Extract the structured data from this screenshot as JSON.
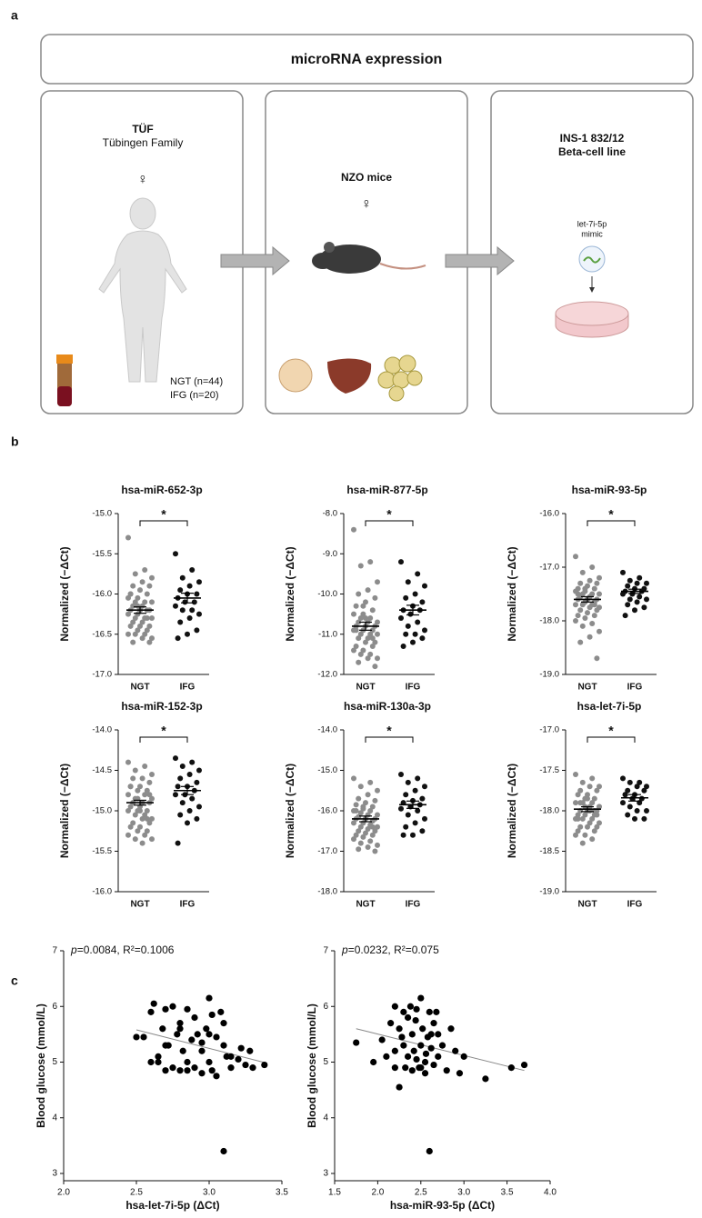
{
  "figure": {
    "panel_labels": [
      "a",
      "b",
      "c"
    ],
    "header": "microRNA expression",
    "boxes": [
      {
        "title": "TÜF",
        "subtitle": "Tübingen Family",
        "sex": "♀",
        "groups": [
          "NGT (n=44)",
          "IFG (n=20)"
        ]
      },
      {
        "title": "NZO mice",
        "sex": "♀"
      },
      {
        "title_lines": [
          "INS-1 832/12",
          "Beta-cell line"
        ],
        "label_lines": [
          "let-7i-5p",
          "mimic"
        ]
      }
    ]
  },
  "chart_data": [
    {
      "type": "strip",
      "title": "hsa-miR-652-3p",
      "ylabel": "Normalized (−ΔCt)",
      "categories": [
        "NGT",
        "IFG"
      ],
      "annotation": "*",
      "series": [
        {
          "color": "#8c8c8c",
          "mean": -16.2,
          "sem": 0.04,
          "values": [
            -15.3,
            -15.7,
            -15.75,
            -15.8,
            -15.85,
            -15.9,
            -15.9,
            -15.95,
            -16.0,
            -16.0,
            -16.05,
            -16.05,
            -16.1,
            -16.1,
            -16.1,
            -16.15,
            -16.15,
            -16.2,
            -16.2,
            -16.2,
            -16.2,
            -16.25,
            -16.25,
            -16.3,
            -16.3,
            -16.3,
            -16.35,
            -16.35,
            -16.4,
            -16.4,
            -16.4,
            -16.45,
            -16.45,
            -16.5,
            -16.5,
            -16.5,
            -16.55,
            -16.55,
            -16.6,
            -16.6,
            -16.2,
            -16.0,
            -16.3,
            -16.15
          ]
        },
        {
          "color": "#111111",
          "mean": -16.05,
          "sem": 0.06,
          "values": [
            -15.5,
            -15.7,
            -15.8,
            -15.85,
            -15.9,
            -15.95,
            -16.0,
            -16.0,
            -16.05,
            -16.1,
            -16.1,
            -16.15,
            -16.2,
            -16.2,
            -16.25,
            -16.3,
            -16.35,
            -16.45,
            -16.5,
            -16.55
          ]
        }
      ],
      "ylim": [
        -17,
        -15
      ],
      "yticks": [
        {
          "value": -15,
          "label": "-15.0"
        },
        {
          "value": -15.5,
          "label": "-15.5"
        },
        {
          "value": -16,
          "label": "-16.0"
        },
        {
          "value": -16.5,
          "label": "-16.5"
        },
        {
          "value": -17,
          "label": "-17.0"
        }
      ]
    },
    {
      "type": "strip",
      "title": "hsa-miR-877-5p",
      "ylabel": "Normalized (−ΔCt)",
      "categories": [
        "NGT",
        "IFG"
      ],
      "annotation": "*",
      "series": [
        {
          "color": "#8c8c8c",
          "mean": -10.8,
          "sem": 0.1,
          "values": [
            -8.4,
            -9.2,
            -9.3,
            -9.7,
            -9.9,
            -10.0,
            -10.1,
            -10.2,
            -10.3,
            -10.4,
            -10.5,
            -10.5,
            -10.6,
            -10.6,
            -10.7,
            -10.7,
            -10.7,
            -10.8,
            -10.8,
            -10.8,
            -10.9,
            -10.9,
            -10.9,
            -11.0,
            -11.0,
            -11.0,
            -11.1,
            -11.1,
            -11.2,
            -11.2,
            -11.3,
            -11.3,
            -11.4,
            -11.4,
            -11.5,
            -11.5,
            -11.6,
            -11.6,
            -11.7,
            -11.8,
            -10.6,
            -10.9,
            -11.1,
            -10.3
          ]
        },
        {
          "color": "#111111",
          "mean": -10.4,
          "sem": 0.12,
          "values": [
            -9.2,
            -9.5,
            -9.7,
            -9.8,
            -10.0,
            -10.1,
            -10.2,
            -10.3,
            -10.4,
            -10.4,
            -10.5,
            -10.6,
            -10.7,
            -10.8,
            -10.9,
            -11.0,
            -11.0,
            -11.1,
            -11.2,
            -11.3
          ]
        }
      ],
      "ylim": [
        -12,
        -8
      ],
      "yticks": [
        {
          "value": -8,
          "label": "-8.0"
        },
        {
          "value": -9,
          "label": "-9.0"
        },
        {
          "value": -10,
          "label": "-10.0"
        },
        {
          "value": -11,
          "label": "-11.0"
        },
        {
          "value": -12,
          "label": "-12.0"
        }
      ]
    },
    {
      "type": "strip",
      "title": "hsa-miR-93-5p",
      "ylabel": "Normalized (−ΔCt)",
      "categories": [
        "NGT",
        "IFG"
      ],
      "annotation": "*",
      "series": [
        {
          "color": "#8c8c8c",
          "mean": -17.6,
          "sem": 0.05,
          "values": [
            -16.8,
            -17.0,
            -17.1,
            -17.2,
            -17.25,
            -17.3,
            -17.3,
            -17.35,
            -17.4,
            -17.4,
            -17.45,
            -17.45,
            -17.5,
            -17.5,
            -17.5,
            -17.55,
            -17.55,
            -17.6,
            -17.6,
            -17.6,
            -17.65,
            -17.65,
            -17.7,
            -17.7,
            -17.7,
            -17.75,
            -17.75,
            -17.8,
            -17.8,
            -17.85,
            -17.9,
            -17.9,
            -17.95,
            -18.0,
            -18.05,
            -18.1,
            -18.2,
            -18.3,
            -18.4,
            -18.7,
            -17.6,
            -17.5,
            -17.7,
            -17.4
          ]
        },
        {
          "color": "#111111",
          "mean": -17.45,
          "sem": 0.04,
          "values": [
            -17.1,
            -17.2,
            -17.25,
            -17.3,
            -17.3,
            -17.35,
            -17.4,
            -17.4,
            -17.45,
            -17.45,
            -17.5,
            -17.5,
            -17.55,
            -17.6,
            -17.6,
            -17.65,
            -17.7,
            -17.75,
            -17.8,
            -17.9
          ]
        }
      ],
      "ylim": [
        -19,
        -16
      ],
      "yticks": [
        {
          "value": -16,
          "label": "-16.0"
        },
        {
          "value": -17,
          "label": "-17.0"
        },
        {
          "value": -18,
          "label": "-18.0"
        },
        {
          "value": -19,
          "label": "-19.0"
        }
      ]
    },
    {
      "type": "strip",
      "title": "hsa-miR-152-3p",
      "ylabel": "Normalized (−ΔCt)",
      "categories": [
        "NGT",
        "IFG"
      ],
      "annotation": "*",
      "series": [
        {
          "color": "#8c8c8c",
          "mean": -14.9,
          "sem": 0.03,
          "values": [
            -14.4,
            -14.45,
            -14.5,
            -14.55,
            -14.6,
            -14.6,
            -14.65,
            -14.7,
            -14.7,
            -14.75,
            -14.75,
            -14.8,
            -14.8,
            -14.85,
            -14.85,
            -14.9,
            -14.9,
            -14.9,
            -14.95,
            -14.95,
            -15.0,
            -15.0,
            -15.0,
            -15.05,
            -15.05,
            -15.1,
            -15.1,
            -15.15,
            -15.15,
            -15.2,
            -15.2,
            -15.25,
            -15.25,
            -15.3,
            -15.3,
            -15.35,
            -15.35,
            -15.4,
            -14.9,
            -14.8,
            -15.0,
            -14.7,
            -15.1,
            -14.85
          ]
        },
        {
          "color": "#111111",
          "mean": -14.75,
          "sem": 0.05,
          "values": [
            -14.35,
            -14.4,
            -14.45,
            -14.5,
            -14.55,
            -14.6,
            -14.65,
            -14.7,
            -14.7,
            -14.75,
            -14.8,
            -14.8,
            -14.85,
            -14.9,
            -14.95,
            -15.0,
            -15.05,
            -15.1,
            -15.15,
            -15.4
          ]
        }
      ],
      "ylim": [
        -16,
        -14
      ],
      "yticks": [
        {
          "value": -14,
          "label": "-14.0"
        },
        {
          "value": -14.5,
          "label": "-14.5"
        },
        {
          "value": -15,
          "label": "-15.0"
        },
        {
          "value": -15.5,
          "label": "-15.5"
        },
        {
          "value": -16,
          "label": "-16.0"
        }
      ]
    },
    {
      "type": "strip",
      "title": "hsa-miR-130a-3p",
      "ylabel": "Normalized (−ΔCt)",
      "categories": [
        "NGT",
        "IFG"
      ],
      "annotation": "*",
      "series": [
        {
          "color": "#8c8c8c",
          "mean": -16.2,
          "sem": 0.07,
          "values": [
            -15.2,
            -15.3,
            -15.4,
            -15.5,
            -15.6,
            -15.7,
            -15.75,
            -15.8,
            -15.85,
            -15.9,
            -15.95,
            -16.0,
            -16.0,
            -16.05,
            -16.1,
            -16.1,
            -16.15,
            -16.2,
            -16.2,
            -16.2,
            -16.25,
            -16.3,
            -16.3,
            -16.35,
            -16.4,
            -16.4,
            -16.45,
            -16.5,
            -16.5,
            -16.55,
            -16.6,
            -16.6,
            -16.65,
            -16.7,
            -16.75,
            -16.8,
            -16.85,
            -16.9,
            -16.95,
            -17.0,
            -16.2,
            -16.0,
            -16.4,
            -15.9
          ]
        },
        {
          "color": "#111111",
          "mean": -15.85,
          "sem": 0.09,
          "values": [
            -15.1,
            -15.2,
            -15.3,
            -15.4,
            -15.5,
            -15.6,
            -15.7,
            -15.75,
            -15.8,
            -15.85,
            -15.9,
            -15.95,
            -16.0,
            -16.1,
            -16.2,
            -16.3,
            -16.4,
            -16.5,
            -16.6,
            -16.6
          ]
        }
      ],
      "ylim": [
        -18,
        -14
      ],
      "yticks": [
        {
          "value": -14,
          "label": "-14.0"
        },
        {
          "value": -15,
          "label": "-15.0"
        },
        {
          "value": -16,
          "label": "-16.0"
        },
        {
          "value": -17,
          "label": "-17.0"
        },
        {
          "value": -18,
          "label": "-18.0"
        }
      ]
    },
    {
      "type": "strip",
      "title": "hsa-let-7i-5p",
      "ylabel": "Normalized (−ΔCt)",
      "categories": [
        "NGT",
        "IFG"
      ],
      "annotation": "*",
      "series": [
        {
          "color": "#8c8c8c",
          "mean": -17.98,
          "sem": 0.03,
          "values": [
            -17.55,
            -17.6,
            -17.65,
            -17.7,
            -17.7,
            -17.75,
            -17.75,
            -17.8,
            -17.8,
            -17.85,
            -17.85,
            -17.9,
            -17.9,
            -17.9,
            -17.95,
            -17.95,
            -18.0,
            -18.0,
            -18.0,
            -18.05,
            -18.05,
            -18.05,
            -18.1,
            -18.1,
            -18.1,
            -18.15,
            -18.15,
            -18.2,
            -18.2,
            -18.2,
            -18.25,
            -18.25,
            -18.3,
            -18.3,
            -18.35,
            -18.4,
            -17.95,
            -18.0,
            -17.9,
            -18.05,
            -17.85,
            -18.1,
            -18.0,
            -17.95
          ]
        },
        {
          "color": "#111111",
          "mean": -17.84,
          "sem": 0.04,
          "values": [
            -17.6,
            -17.65,
            -17.65,
            -17.7,
            -17.7,
            -17.75,
            -17.75,
            -17.8,
            -17.8,
            -17.85,
            -17.85,
            -17.9,
            -17.9,
            -17.95,
            -18.0,
            -18.0,
            -18.05,
            -18.1,
            -18.1,
            -17.8
          ]
        }
      ],
      "ylim": [
        -19,
        -17
      ],
      "yticks": [
        {
          "value": -17,
          "label": "-17.0"
        },
        {
          "value": -17.5,
          "label": "-17.5"
        },
        {
          "value": -18,
          "label": "-18.0"
        },
        {
          "value": -18.5,
          "label": "-18.5"
        },
        {
          "value": -19,
          "label": "-19.0"
        }
      ]
    },
    {
      "type": "scatter",
      "annotation_italic": "p",
      "annotation": "=0.0084, R²=0.1006",
      "xlabel": "hsa-let-7i-5p (ΔCt)",
      "ylabel": "Blood glucose (mmol/L)",
      "color": "#000000",
      "x": [
        2.5,
        2.55,
        2.6,
        2.62,
        2.65,
        2.68,
        2.7,
        2.7,
        2.72,
        2.75,
        2.75,
        2.78,
        2.8,
        2.8,
        2.82,
        2.85,
        2.85,
        2.88,
        2.9,
        2.9,
        2.92,
        2.95,
        2.95,
        2.98,
        3.0,
        3.0,
        3.02,
        3.05,
        3.05,
        3.08,
        3.1,
        3.1,
        3.12,
        3.15,
        3.2,
        3.22,
        3.25,
        3.28,
        3.3,
        3.38,
        2.65,
        2.8,
        2.95,
        3.0,
        2.7,
        2.85,
        3.15,
        2.6,
        3.02,
        3.1
      ],
      "y": [
        5.45,
        5.45,
        5.9,
        6.05,
        5.0,
        5.6,
        5.95,
        4.85,
        5.3,
        6.0,
        4.9,
        5.5,
        5.7,
        4.85,
        5.2,
        5.95,
        5.0,
        5.4,
        5.8,
        4.9,
        5.5,
        5.35,
        4.8,
        5.6,
        6.15,
        5.0,
        5.85,
        5.45,
        4.75,
        5.9,
        5.3,
        3.4,
        5.1,
        4.9,
        5.05,
        5.25,
        4.95,
        5.2,
        4.9,
        4.95,
        5.1,
        5.6,
        5.2,
        5.5,
        5.3,
        4.85,
        5.1,
        5.0,
        4.85,
        5.7
      ],
      "trend": {
        "x": [
          2.5,
          3.4
        ],
        "y": [
          5.58,
          4.98
        ]
      },
      "xlim": [
        2,
        3.5
      ],
      "xticks": [
        {
          "value": 2,
          "label": "2.0"
        },
        {
          "value": 2.5,
          "label": "2.5"
        },
        {
          "value": 3,
          "label": "3.0"
        },
        {
          "value": 3.5,
          "label": "3.5"
        }
      ],
      "ylim": [
        3,
        7
      ],
      "yticks": [
        3,
        4,
        5,
        6,
        7
      ]
    },
    {
      "type": "scatter",
      "annotation_italic": "p",
      "annotation": "=0.0232, R²=0.075",
      "xlabel": "hsa-miR-93-5p (ΔCt)",
      "ylabel": "Blood glucose (mmol/L)",
      "color": "#000000",
      "x": [
        1.75,
        1.95,
        2.05,
        2.1,
        2.15,
        2.2,
        2.2,
        2.25,
        2.25,
        2.3,
        2.3,
        2.32,
        2.35,
        2.35,
        2.38,
        2.4,
        2.4,
        2.42,
        2.45,
        2.45,
        2.48,
        2.5,
        2.5,
        2.52,
        2.55,
        2.55,
        2.58,
        2.6,
        2.6,
        2.62,
        2.65,
        2.65,
        2.7,
        2.7,
        2.75,
        2.8,
        2.85,
        2.9,
        2.95,
        3.0,
        3.25,
        3.55,
        3.7,
        2.28,
        2.44,
        2.56,
        2.68,
        2.2,
        2.5,
        2.62
      ],
      "y": [
        5.35,
        5.0,
        5.4,
        5.1,
        5.7,
        6.0,
        4.9,
        5.6,
        4.55,
        5.9,
        5.3,
        4.9,
        5.8,
        5.1,
        6.0,
        5.5,
        4.85,
        5.2,
        5.95,
        5.05,
        4.9,
        6.15,
        5.3,
        5.6,
        5.0,
        4.8,
        5.45,
        5.9,
        3.4,
        5.25,
        5.7,
        4.95,
        5.5,
        5.1,
        5.3,
        4.85,
        5.6,
        5.2,
        4.8,
        5.1,
        4.7,
        4.9,
        4.95,
        5.45,
        5.75,
        5.15,
        5.9,
        5.2,
        4.9,
        5.5
      ],
      "trend": {
        "x": [
          1.75,
          3.7
        ],
        "y": [
          5.6,
          4.85
        ]
      },
      "xlim": [
        1.5,
        4
      ],
      "xticks": [
        {
          "value": 1.5,
          "label": "1.5"
        },
        {
          "value": 2,
          "label": "2.0"
        },
        {
          "value": 2.5,
          "label": "2.5"
        },
        {
          "value": 3,
          "label": "3.0"
        },
        {
          "value": 3.5,
          "label": "3.5"
        },
        {
          "value": 4,
          "label": "4.0"
        }
      ],
      "ylim": [
        3,
        7
      ],
      "yticks": [
        3,
        4,
        5,
        6,
        7
      ]
    }
  ]
}
